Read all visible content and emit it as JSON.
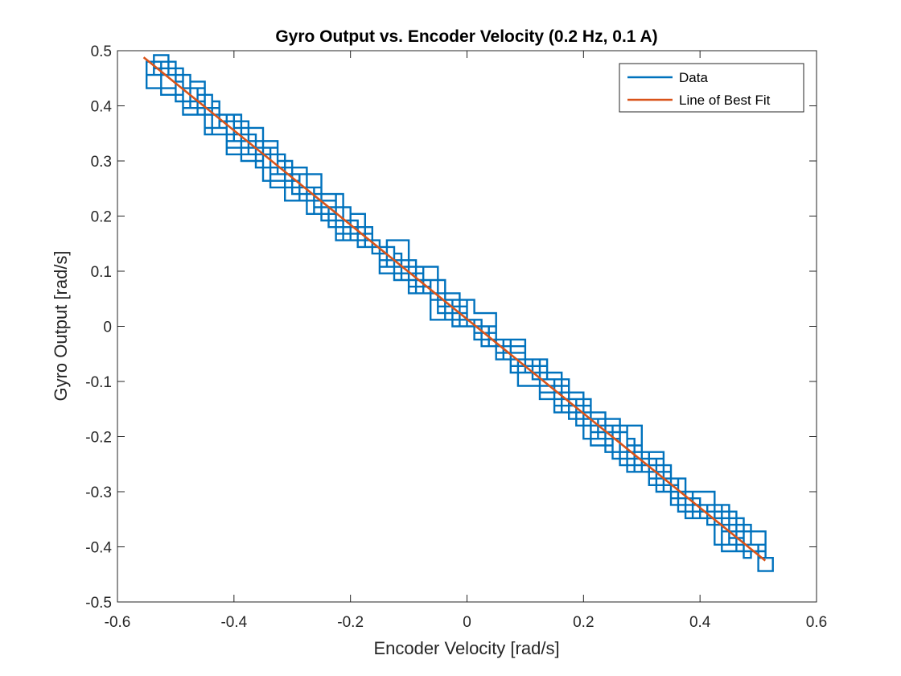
{
  "chart_data": {
    "type": "line",
    "title": "Gyro Output vs. Encoder Velocity (0.2 Hz, 0.1 A)",
    "xlabel": "Encoder Velocity [rad/s]",
    "ylabel": "Gyro Output [rad/s]",
    "xlim": [
      -0.6,
      0.6
    ],
    "ylim": [
      -0.5,
      0.5
    ],
    "xticks": [
      -0.6,
      -0.4,
      -0.2,
      0,
      0.2,
      0.4,
      0.6
    ],
    "yticks": [
      -0.5,
      -0.4,
      -0.3,
      -0.2,
      -0.1,
      0,
      0.1,
      0.2,
      0.3,
      0.4,
      0.5
    ],
    "xtick_labels": [
      "-0.6",
      "-0.4",
      "-0.2",
      "0",
      "0.2",
      "0.4",
      "0.6"
    ],
    "ytick_labels": [
      "-0.5",
      "-0.4",
      "-0.3",
      "-0.2",
      "-0.1",
      "0",
      "0.1",
      "0.2",
      "0.3",
      "0.4",
      "0.5"
    ],
    "grid": false,
    "box": true,
    "legend": {
      "location": "top-right",
      "entries": [
        "Data",
        "Line of Best Fit"
      ]
    },
    "series": [
      {
        "name": "Data",
        "color": "#0072BD",
        "style": "noisy-stepped",
        "x_range": [
          -0.535,
          0.51
        ],
        "trend": {
          "slope": -0.8553,
          "intercept": 0.0134
        }
      },
      {
        "name": "Line of Best Fit",
        "color": "#D95319",
        "x": [
          -0.555,
          0.512
        ],
        "y": [
          0.488,
          -0.425
        ]
      }
    ]
  }
}
